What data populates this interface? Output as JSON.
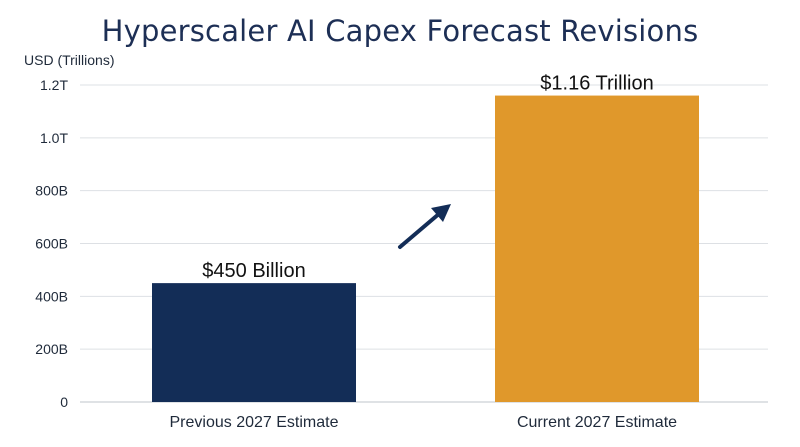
{
  "chart_data": {
    "type": "bar",
    "title": "Hyperscaler AI Capex Forecast Revisions",
    "ylabel": "USD (Trillions)",
    "xlabel": "",
    "categories": [
      "Previous 2027 Estimate",
      "Current 2027 Estimate"
    ],
    "values": [
      450,
      1160
    ],
    "value_unit": "billion USD",
    "data_labels": [
      "$450 Billion",
      "$1.16 Trillion"
    ],
    "bar_colors": [
      "#132d57",
      "#e0982b"
    ],
    "ylim": [
      0,
      1200
    ],
    "yticks": [
      0,
      200,
      400,
      600,
      800,
      1000,
      1200
    ],
    "ytick_labels": [
      "0",
      "200B",
      "400B",
      "600B",
      "800B",
      "1.0T",
      "1.2T"
    ],
    "grid": true,
    "legend": "none",
    "annotation": {
      "type": "arrow",
      "icon": "arrow-up-right-icon",
      "color": "#132d57"
    }
  }
}
